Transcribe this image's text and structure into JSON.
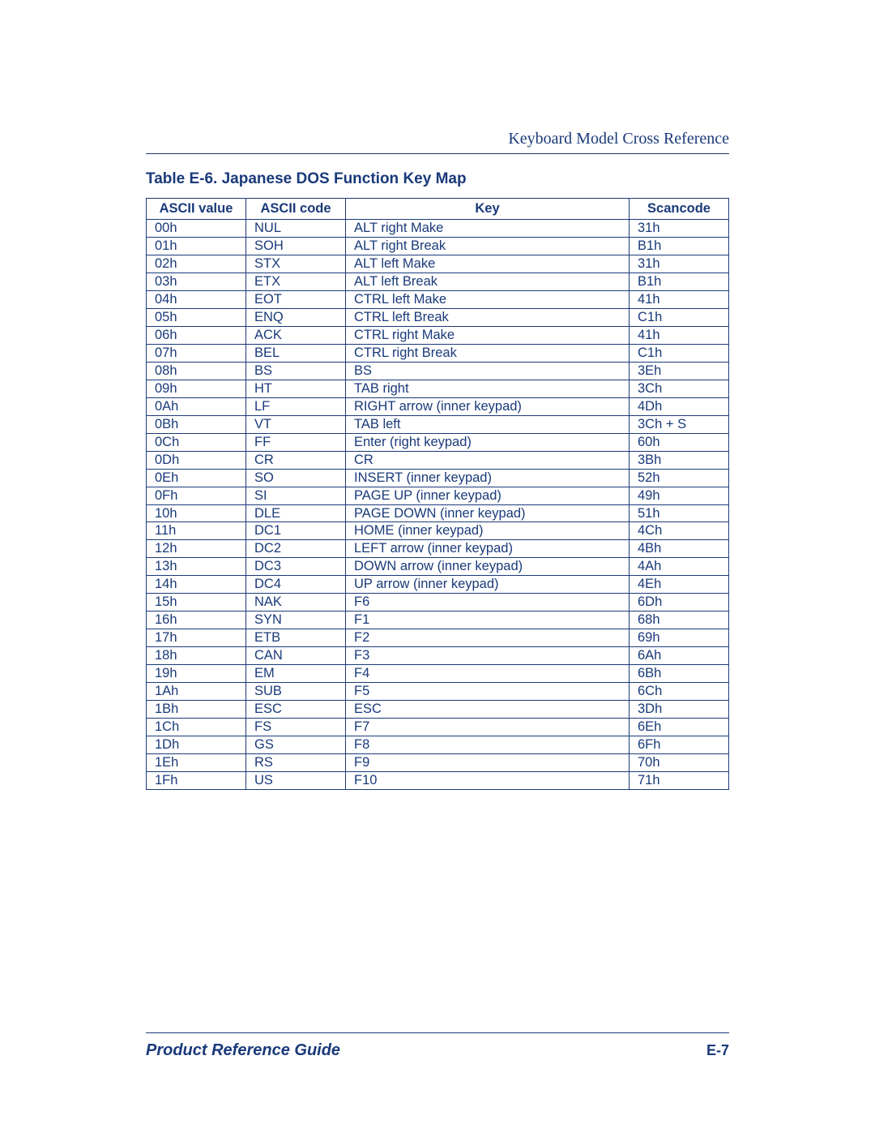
{
  "header": {
    "title": "Keyboard Model Cross Reference"
  },
  "table": {
    "title": "Table E-6. Japanese DOS Function Key Map",
    "columns": [
      "ASCII value",
      "ASCII code",
      "Key",
      "Scancode"
    ],
    "rows": [
      [
        "00h",
        "NUL",
        "ALT right Make",
        "31h"
      ],
      [
        "01h",
        "SOH",
        "ALT right Break",
        "B1h"
      ],
      [
        "02h",
        "STX",
        "ALT left Make",
        "31h"
      ],
      [
        "03h",
        "ETX",
        "ALT left Break",
        "B1h"
      ],
      [
        "04h",
        "EOT",
        "CTRL left Make",
        "41h"
      ],
      [
        "05h",
        "ENQ",
        "CTRL left Break",
        "C1h"
      ],
      [
        "06h",
        "ACK",
        "CTRL right Make",
        "41h"
      ],
      [
        "07h",
        "BEL",
        "CTRL right Break",
        "C1h"
      ],
      [
        "08h",
        "BS",
        "BS",
        "3Eh"
      ],
      [
        "09h",
        "HT",
        "TAB right",
        "3Ch"
      ],
      [
        "0Ah",
        "LF",
        "RIGHT arrow (inner keypad)",
        "4Dh"
      ],
      [
        "0Bh",
        "VT",
        "TAB left",
        "3Ch + S"
      ],
      [
        "0Ch",
        "FF",
        "Enter (right keypad)",
        "60h"
      ],
      [
        "0Dh",
        "CR",
        "CR",
        "3Bh"
      ],
      [
        "0Eh",
        "SO",
        "INSERT (inner keypad)",
        "52h"
      ],
      [
        "0Fh",
        "SI",
        "PAGE UP (inner keypad)",
        "49h"
      ],
      [
        "10h",
        "DLE",
        "PAGE DOWN (inner keypad)",
        "51h"
      ],
      [
        "11h",
        "DC1",
        "HOME (inner keypad)",
        "4Ch"
      ],
      [
        "12h",
        "DC2",
        "LEFT arrow (inner keypad)",
        "4Bh"
      ],
      [
        "13h",
        "DC3",
        "DOWN arrow (inner keypad)",
        "4Ah"
      ],
      [
        "14h",
        "DC4",
        "UP arrow (inner keypad)",
        "4Eh"
      ],
      [
        "15h",
        "NAK",
        "F6",
        "6Dh"
      ],
      [
        "16h",
        "SYN",
        "F1",
        "68h"
      ],
      [
        "17h",
        "ETB",
        "F2",
        "69h"
      ],
      [
        "18h",
        "CAN",
        "F3",
        "6Ah"
      ],
      [
        "19h",
        "EM",
        "F4",
        "6Bh"
      ],
      [
        "1Ah",
        "SUB",
        "F5",
        "6Ch"
      ],
      [
        "1Bh",
        "ESC",
        "ESC",
        "3Dh"
      ],
      [
        "1Ch",
        "FS",
        "F7",
        "6Eh"
      ],
      [
        "1Dh",
        "GS",
        "F8",
        "6Fh"
      ],
      [
        "1Eh",
        "RS",
        "F9",
        "70h"
      ],
      [
        "1Fh",
        "US",
        "F10",
        "71h"
      ]
    ]
  },
  "footer": {
    "left": "Product Reference Guide",
    "right": "E-7"
  },
  "styling": {
    "text_color": "#1a3a7a",
    "border_color": "#1a3a7a",
    "background_color": "#ffffff",
    "header_font_family": "Times New Roman",
    "body_font_family": "Arial",
    "table_title_fontsize": 19,
    "table_body_fontsize": 16.5,
    "footer_left_fontsize": 20,
    "footer_right_fontsize": 18,
    "col_widths": {
      "ascii_value": 110,
      "ascii_code": 110,
      "scancode": 110
    }
  }
}
